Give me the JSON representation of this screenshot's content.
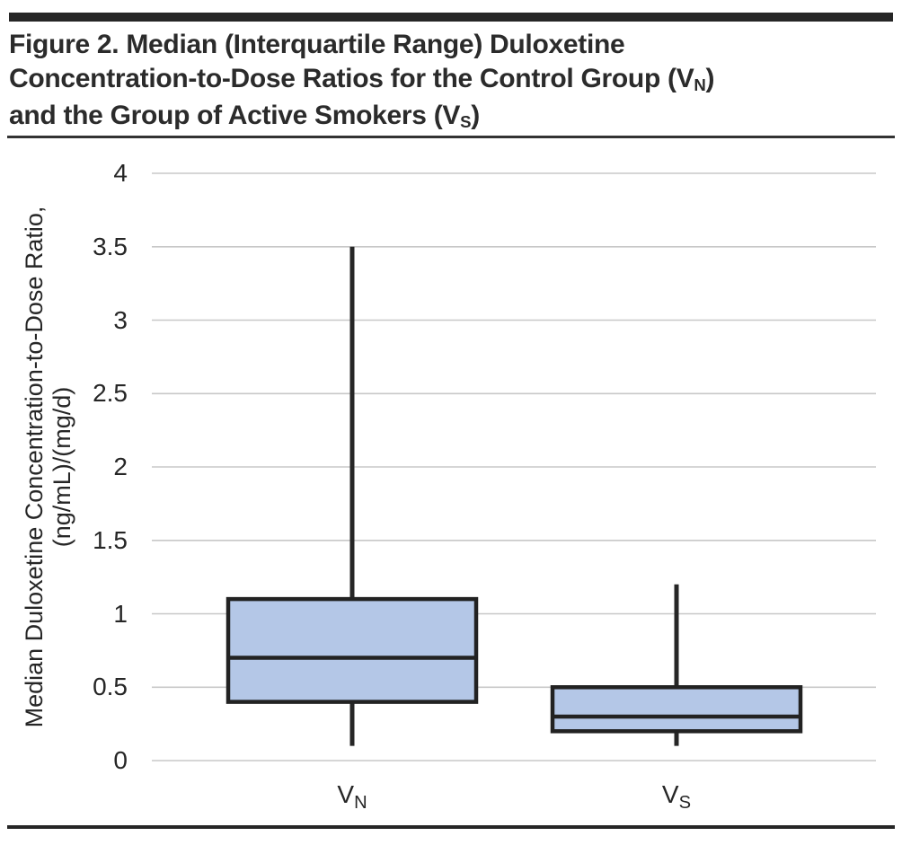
{
  "figure": {
    "title_lines": [
      [
        {
          "t": "Figure 2. Median (Interquartile Range) Duloxetine"
        }
      ],
      [
        {
          "t": "Concentration-to-Dose Ratios for the Control Group (V"
        },
        {
          "t": "N",
          "sub": true
        },
        {
          "t": ")"
        }
      ],
      [
        {
          "t": "and the Group of Active Smokers (V"
        },
        {
          "t": "S",
          "sub": true
        },
        {
          "t": ")"
        }
      ]
    ],
    "rule_color": "#262626"
  },
  "chart_data": {
    "type": "boxplot",
    "title": "Figure 2. Median (Interquartile Range) Duloxetine Concentration-to-Dose Ratios for the Control Group (VN) and the Group of Active Smokers (VS)",
    "ylabel_line1": "Median Duloxetine Concentration-to-Dose Ratio,",
    "ylabel_line2": "(ng/mL)/(mg/d)",
    "xlabel": "",
    "ylim": [
      0,
      4
    ],
    "ytick_values": [
      4,
      3.5,
      3,
      2.5,
      2,
      1.5,
      1,
      0.5,
      0
    ],
    "ytick_labels": [
      "4",
      "3.5",
      "3",
      "2.5",
      "2",
      "1.5",
      "1",
      "0.5",
      "0"
    ],
    "grid": true,
    "legend": "none",
    "categories": [
      {
        "base": "V",
        "sub": "N",
        "name": "Control Group"
      },
      {
        "base": "V",
        "sub": "S",
        "name": "Active Smokers"
      }
    ],
    "series": [
      {
        "name": "VN",
        "whisker_low": 0.1,
        "q1": 0.4,
        "median": 0.7,
        "q3": 1.1,
        "whisker_high": 3.5
      },
      {
        "name": "VS",
        "whisker_low": 0.1,
        "q1": 0.2,
        "median": 0.3,
        "q3": 0.5,
        "whisker_high": 1.2
      }
    ],
    "colors": {
      "box_fill": "#b4c7e7",
      "box_stroke": "#222222",
      "whisker": "#262626",
      "gridline": "#c8c8c8",
      "text": "#262626"
    }
  }
}
